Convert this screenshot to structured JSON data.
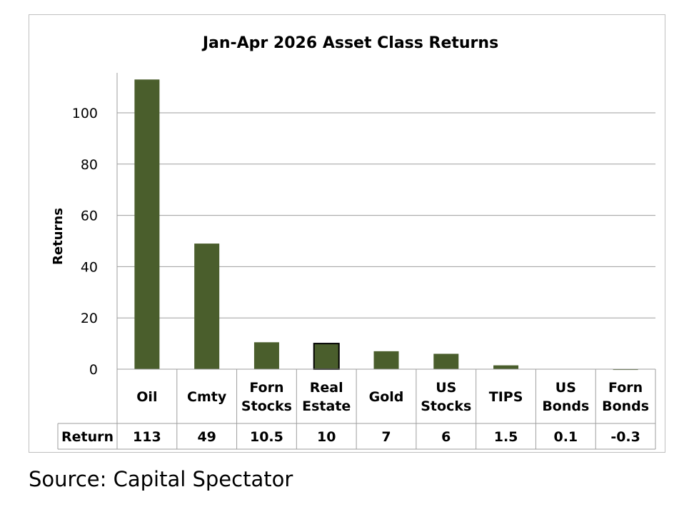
{
  "chart_data": {
    "type": "bar",
    "title": "Jan-Apr 2026 Asset Class Returns",
    "ylabel": "Returns",
    "ylim": [
      0,
      120
    ],
    "yticks": [
      0,
      20,
      40,
      60,
      80,
      100
    ],
    "grid": true,
    "categories": [
      [
        "Oil"
      ],
      [
        "Cmty"
      ],
      [
        "Forn",
        "Stocks"
      ],
      [
        "Real",
        "Estate"
      ],
      [
        "Gold"
      ],
      [
        "US",
        "Stocks"
      ],
      [
        "TIPS"
      ],
      [
        "US",
        "Bonds"
      ],
      [
        "Forn",
        "Bonds"
      ]
    ],
    "series": [
      {
        "name": "Return",
        "values": [
          113,
          49,
          10.5,
          10,
          7,
          6,
          1.5,
          0.1,
          -0.3
        ],
        "labels": [
          "113",
          "49",
          "10.5",
          "10",
          "7",
          "6",
          "1.5",
          "0.1",
          "-0.3"
        ]
      }
    ],
    "bar_color": "#4a5e2c",
    "highlight_border_index": 3
  },
  "source": "Source: Capital Spectator"
}
